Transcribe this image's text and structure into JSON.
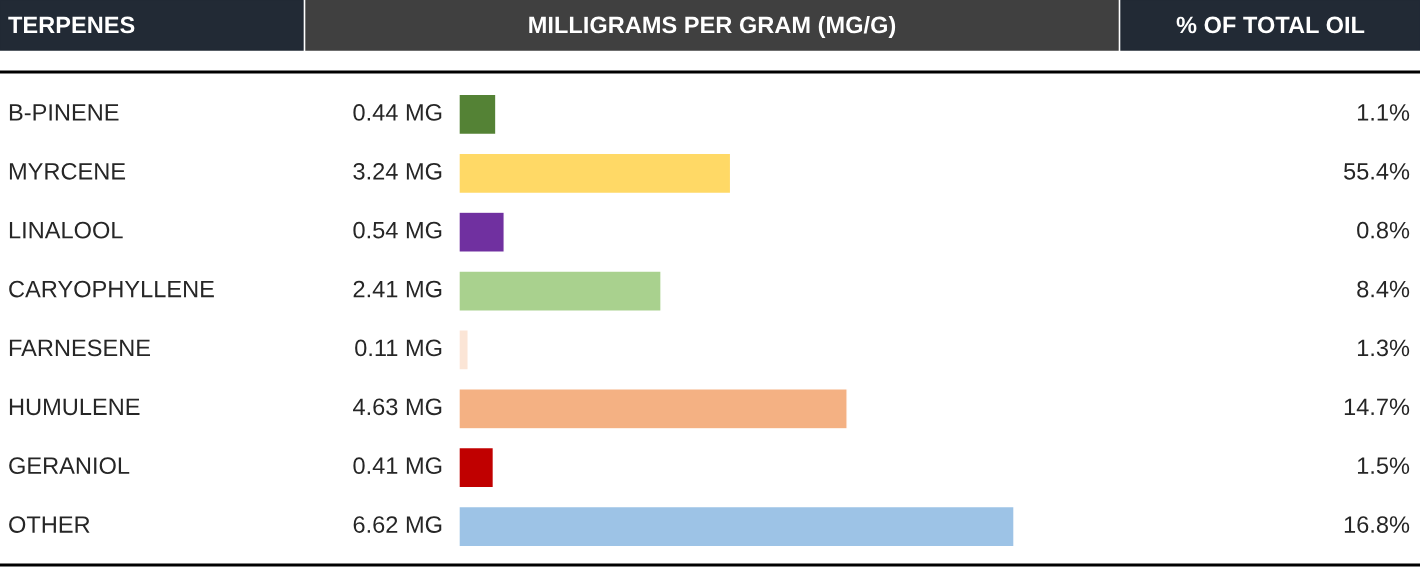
{
  "chart_data": {
    "type": "bar",
    "orientation": "horizontal",
    "title": "MILLIGRAMS PER GRAM (MG/G)",
    "ylabel": "TERPENES",
    "categories": [
      "B-PINENE",
      "MYRCENE",
      "LINALOOL",
      "CARYOPHYLLENE",
      "FARNESENE",
      "HUMULENE",
      "GERANIOL",
      "OTHER"
    ],
    "values": [
      0.44,
      3.24,
      0.54,
      2.41,
      0.11,
      4.63,
      0.41,
      6.62
    ],
    "value_labels": [
      "0.44 MG",
      "3.24 MG",
      "0.54 MG",
      "2.41 MG",
      "0.11 MG",
      "4.63 MG",
      "0.41 MG",
      "6.62 MG"
    ],
    "colors": [
      "#548235",
      "#ffd966",
      "#7030a0",
      "#a9d18e",
      "#fbe5d6",
      "#f4b183",
      "#c00000",
      "#9dc3e6"
    ],
    "annotations": [
      "% OF TOTAL OIL",
      "1.1%",
      "55.4%",
      "0.8%",
      "8.4%",
      "1.3%",
      "14.7%",
      "1.5%",
      "16.8%"
    ],
    "tick_labels": "y",
    "legend": false
  }
}
